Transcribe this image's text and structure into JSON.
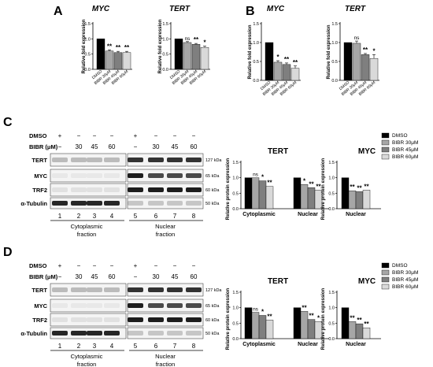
{
  "panels": {
    "A": "A",
    "B": "B",
    "C": "C",
    "D": "D"
  },
  "blot_labels": {
    "dmso": "DMSO",
    "bibr": "BIBR (μM)",
    "conc_row": [
      "−",
      "30",
      "45",
      "60",
      "−",
      "30",
      "45",
      "60"
    ],
    "dmso_row": [
      "+",
      "−",
      "−",
      "−",
      "+",
      "−",
      "−",
      "−"
    ],
    "lanes": [
      "1",
      "2",
      "3",
      "4",
      "5",
      "6",
      "7",
      "8"
    ],
    "proteins": [
      "TERT",
      "MYC",
      "TRF2",
      "α-Tubulin"
    ],
    "kda": [
      "127 kDa",
      "65 kDa",
      "60 kDa",
      "50 kDa"
    ],
    "cyto_1": "Cytoplasmic",
    "cyto_2": "fraction",
    "nuc_1": "Nuclear",
    "nuc_2": "fraction"
  },
  "legend": [
    "DMSO",
    "BIBR 30μM",
    "BIBR 45μM",
    "BIBR 60μM"
  ],
  "colors": {
    "dmso": "#000000",
    "b30": "#a6a6a6",
    "b45": "#7f7f7f",
    "b60": "#d9d9d9"
  },
  "chart_data": [
    {
      "id": "A-MYC",
      "type": "bar",
      "title": "MYC",
      "ylabel": "Relative fold expression",
      "ylim": [
        0,
        1.5
      ],
      "categories": [
        "DMSO",
        "BIBR 30μM",
        "BIBR 45μM",
        "BIBR 60μM"
      ],
      "values": [
        1.0,
        0.6,
        0.55,
        0.55
      ],
      "errors": [
        0,
        0.04,
        0.04,
        0.04
      ],
      "sig": [
        "",
        "**",
        "**",
        "**"
      ]
    },
    {
      "id": "A-TERT",
      "type": "bar",
      "title": "TERT",
      "ylabel": "Relative fold expression",
      "ylim": [
        0,
        1.5
      ],
      "categories": [
        "DMSO",
        "BIBR 30μM",
        "BIBR 45μM",
        "BIBR 60μM"
      ],
      "values": [
        1.0,
        0.88,
        0.82,
        0.72
      ],
      "errors": [
        0,
        0.03,
        0.03,
        0.04
      ],
      "sig": [
        "",
        "ns",
        "**",
        "*"
      ]
    },
    {
      "id": "B-MYC",
      "type": "bar",
      "title": "MYC",
      "ylabel": "Relative fold expression",
      "ylim": [
        0,
        1.5
      ],
      "categories": [
        "DMSO",
        "BIBR 30μM",
        "BIBR 45μM",
        "BIBR 60μM"
      ],
      "values": [
        1.0,
        0.48,
        0.42,
        0.32
      ],
      "errors": [
        0,
        0.04,
        0.04,
        0.06
      ],
      "sig": [
        "",
        "*",
        "**",
        "**"
      ]
    },
    {
      "id": "B-TERT",
      "type": "bar",
      "title": "TERT",
      "ylabel": "Relative fold expression",
      "ylim": [
        0,
        1.5
      ],
      "categories": [
        "DMSO",
        "BIBR 30μM",
        "BIBR 45μM",
        "BIBR 60μM"
      ],
      "values": [
        1.0,
        0.98,
        0.68,
        0.58
      ],
      "errors": [
        0,
        0.06,
        0.03,
        0.1
      ],
      "sig": [
        "",
        "ns",
        "**",
        "*"
      ]
    },
    {
      "id": "C-TERT",
      "type": "bar",
      "title": "TERT",
      "ylabel": "Relative protein expression",
      "ylim": [
        0,
        1.5
      ],
      "groups": [
        "Cytoplasmic",
        "Nuclear"
      ],
      "series": [
        {
          "name": "DMSO",
          "values": [
            1.0,
            1.0
          ]
        },
        {
          "name": "BIBR 30μM",
          "values": [
            1.0,
            0.78
          ]
        },
        {
          "name": "BIBR 45μM",
          "values": [
            0.9,
            0.68
          ]
        },
        {
          "name": "BIBR 60μM",
          "values": [
            0.72,
            0.6
          ]
        }
      ],
      "sig": [
        [
          "",
          "ns",
          "*",
          "**"
        ],
        [
          "",
          "*",
          "**",
          "**"
        ]
      ]
    },
    {
      "id": "C-MYC",
      "type": "bar",
      "title": "MYC",
      "ylabel": "Relative protein expression",
      "ylim": [
        0,
        1.5
      ],
      "groups": [
        "Nuclear"
      ],
      "series": [
        {
          "name": "DMSO",
          "values": [
            1.0
          ]
        },
        {
          "name": "BIBR 30μM",
          "values": [
            0.58
          ]
        },
        {
          "name": "BIBR 45μM",
          "values": [
            0.55
          ]
        },
        {
          "name": "BIBR 60μM",
          "values": [
            0.6
          ]
        }
      ],
      "sig": [
        [
          "",
          "**",
          "**",
          "**"
        ]
      ]
    },
    {
      "id": "D-TERT",
      "type": "bar",
      "title": "TERT",
      "ylabel": "Relative protein expression",
      "ylim": [
        0,
        1.5
      ],
      "groups": [
        "Cytoplasmic",
        "Nuclear"
      ],
      "series": [
        {
          "name": "DMSO",
          "values": [
            1.0,
            1.0
          ]
        },
        {
          "name": "BIBR 30μM",
          "values": [
            0.85,
            0.88
          ]
        },
        {
          "name": "BIBR 45μM",
          "values": [
            0.75,
            0.62
          ]
        },
        {
          "name": "BIBR 60μM",
          "values": [
            0.6,
            0.55
          ]
        }
      ],
      "sig": [
        [
          "",
          "ns",
          "*",
          "**"
        ],
        [
          "",
          "**",
          "**",
          "*"
        ]
      ]
    },
    {
      "id": "D-MYC",
      "type": "bar",
      "title": "MYC",
      "ylabel": "Relative protein expression",
      "ylim": [
        0,
        1.5
      ],
      "groups": [
        "Nuclear"
      ],
      "series": [
        {
          "name": "DMSO",
          "values": [
            1.0
          ]
        },
        {
          "name": "BIBR 30μM",
          "values": [
            0.55
          ]
        },
        {
          "name": "BIBR 45μM",
          "values": [
            0.48
          ]
        },
        {
          "name": "BIBR 60μM",
          "values": [
            0.35
          ]
        }
      ],
      "sig": [
        [
          "",
          "**",
          "**",
          "**"
        ]
      ]
    }
  ]
}
